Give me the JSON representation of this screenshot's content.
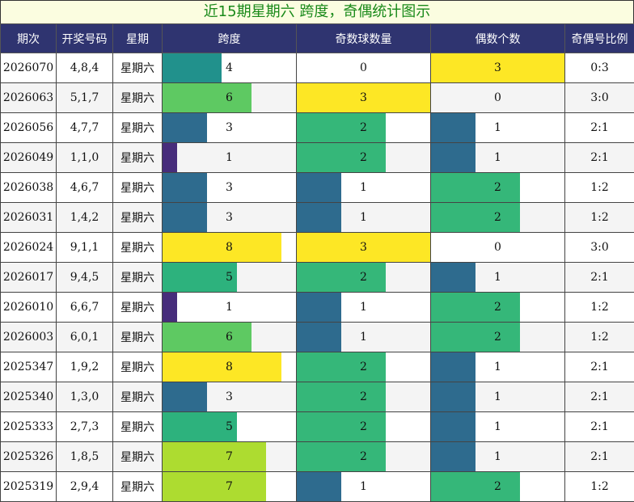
{
  "title": "近15期星期六 跨度，奇偶统计图示",
  "headers": [
    "期次",
    "开奖号码",
    "星期",
    "跨度",
    "奇数球数量",
    "偶数个数",
    "奇偶号比例"
  ],
  "colors": {
    "header_bg": "#2f3470",
    "title_bg": "#fbfde0",
    "title_text": "#1a8a1a",
    "span_scale": {
      "1": "#472d7b",
      "3": "#2e6b8e",
      "4": "#21918c",
      "5": "#2db27d",
      "6": "#5ec962",
      "7": "#addc30",
      "8": "#fde725"
    },
    "count_scale": {
      "1": "#2e6b8e",
      "2": "#35b779",
      "3": "#fde725"
    }
  },
  "chart_data": {
    "type": "table",
    "title": "近15期星期六 跨度，奇偶统计图示",
    "columns": [
      "期次",
      "开奖号码",
      "星期",
      "跨度",
      "奇数球数量",
      "偶数个数",
      "奇偶号比例"
    ],
    "span_max": 9,
    "count_max": 3,
    "rows": [
      {
        "issue": "2026070",
        "numbers": "4,8,4",
        "weekday": "星期六",
        "span": 4,
        "odd": 0,
        "even": 3,
        "ratio": "0:3"
      },
      {
        "issue": "2026063",
        "numbers": "5,1,7",
        "weekday": "星期六",
        "span": 6,
        "odd": 3,
        "even": 0,
        "ratio": "3:0"
      },
      {
        "issue": "2026056",
        "numbers": "4,7,7",
        "weekday": "星期六",
        "span": 3,
        "odd": 2,
        "even": 1,
        "ratio": "2:1"
      },
      {
        "issue": "2026049",
        "numbers": "1,1,0",
        "weekday": "星期六",
        "span": 1,
        "odd": 2,
        "even": 1,
        "ratio": "2:1"
      },
      {
        "issue": "2026038",
        "numbers": "4,6,7",
        "weekday": "星期六",
        "span": 3,
        "odd": 1,
        "even": 2,
        "ratio": "1:2"
      },
      {
        "issue": "2026031",
        "numbers": "1,4,2",
        "weekday": "星期六",
        "span": 3,
        "odd": 1,
        "even": 2,
        "ratio": "1:2"
      },
      {
        "issue": "2026024",
        "numbers": "9,1,1",
        "weekday": "星期六",
        "span": 8,
        "odd": 3,
        "even": 0,
        "ratio": "3:0"
      },
      {
        "issue": "2026017",
        "numbers": "9,4,5",
        "weekday": "星期六",
        "span": 5,
        "odd": 2,
        "even": 1,
        "ratio": "2:1"
      },
      {
        "issue": "2026010",
        "numbers": "6,6,7",
        "weekday": "星期六",
        "span": 1,
        "odd": 1,
        "even": 2,
        "ratio": "1:2"
      },
      {
        "issue": "2026003",
        "numbers": "6,0,1",
        "weekday": "星期六",
        "span": 6,
        "odd": 1,
        "even": 2,
        "ratio": "1:2"
      },
      {
        "issue": "2025347",
        "numbers": "1,9,2",
        "weekday": "星期六",
        "span": 8,
        "odd": 2,
        "even": 1,
        "ratio": "2:1"
      },
      {
        "issue": "2025340",
        "numbers": "1,3,0",
        "weekday": "星期六",
        "span": 3,
        "odd": 2,
        "even": 1,
        "ratio": "2:1"
      },
      {
        "issue": "2025333",
        "numbers": "2,7,3",
        "weekday": "星期六",
        "span": 5,
        "odd": 2,
        "even": 1,
        "ratio": "2:1"
      },
      {
        "issue": "2025326",
        "numbers": "1,8,5",
        "weekday": "星期六",
        "span": 7,
        "odd": 2,
        "even": 1,
        "ratio": "2:1"
      },
      {
        "issue": "2025319",
        "numbers": "2,9,4",
        "weekday": "星期六",
        "span": 7,
        "odd": 1,
        "even": 2,
        "ratio": "1:2"
      }
    ]
  }
}
